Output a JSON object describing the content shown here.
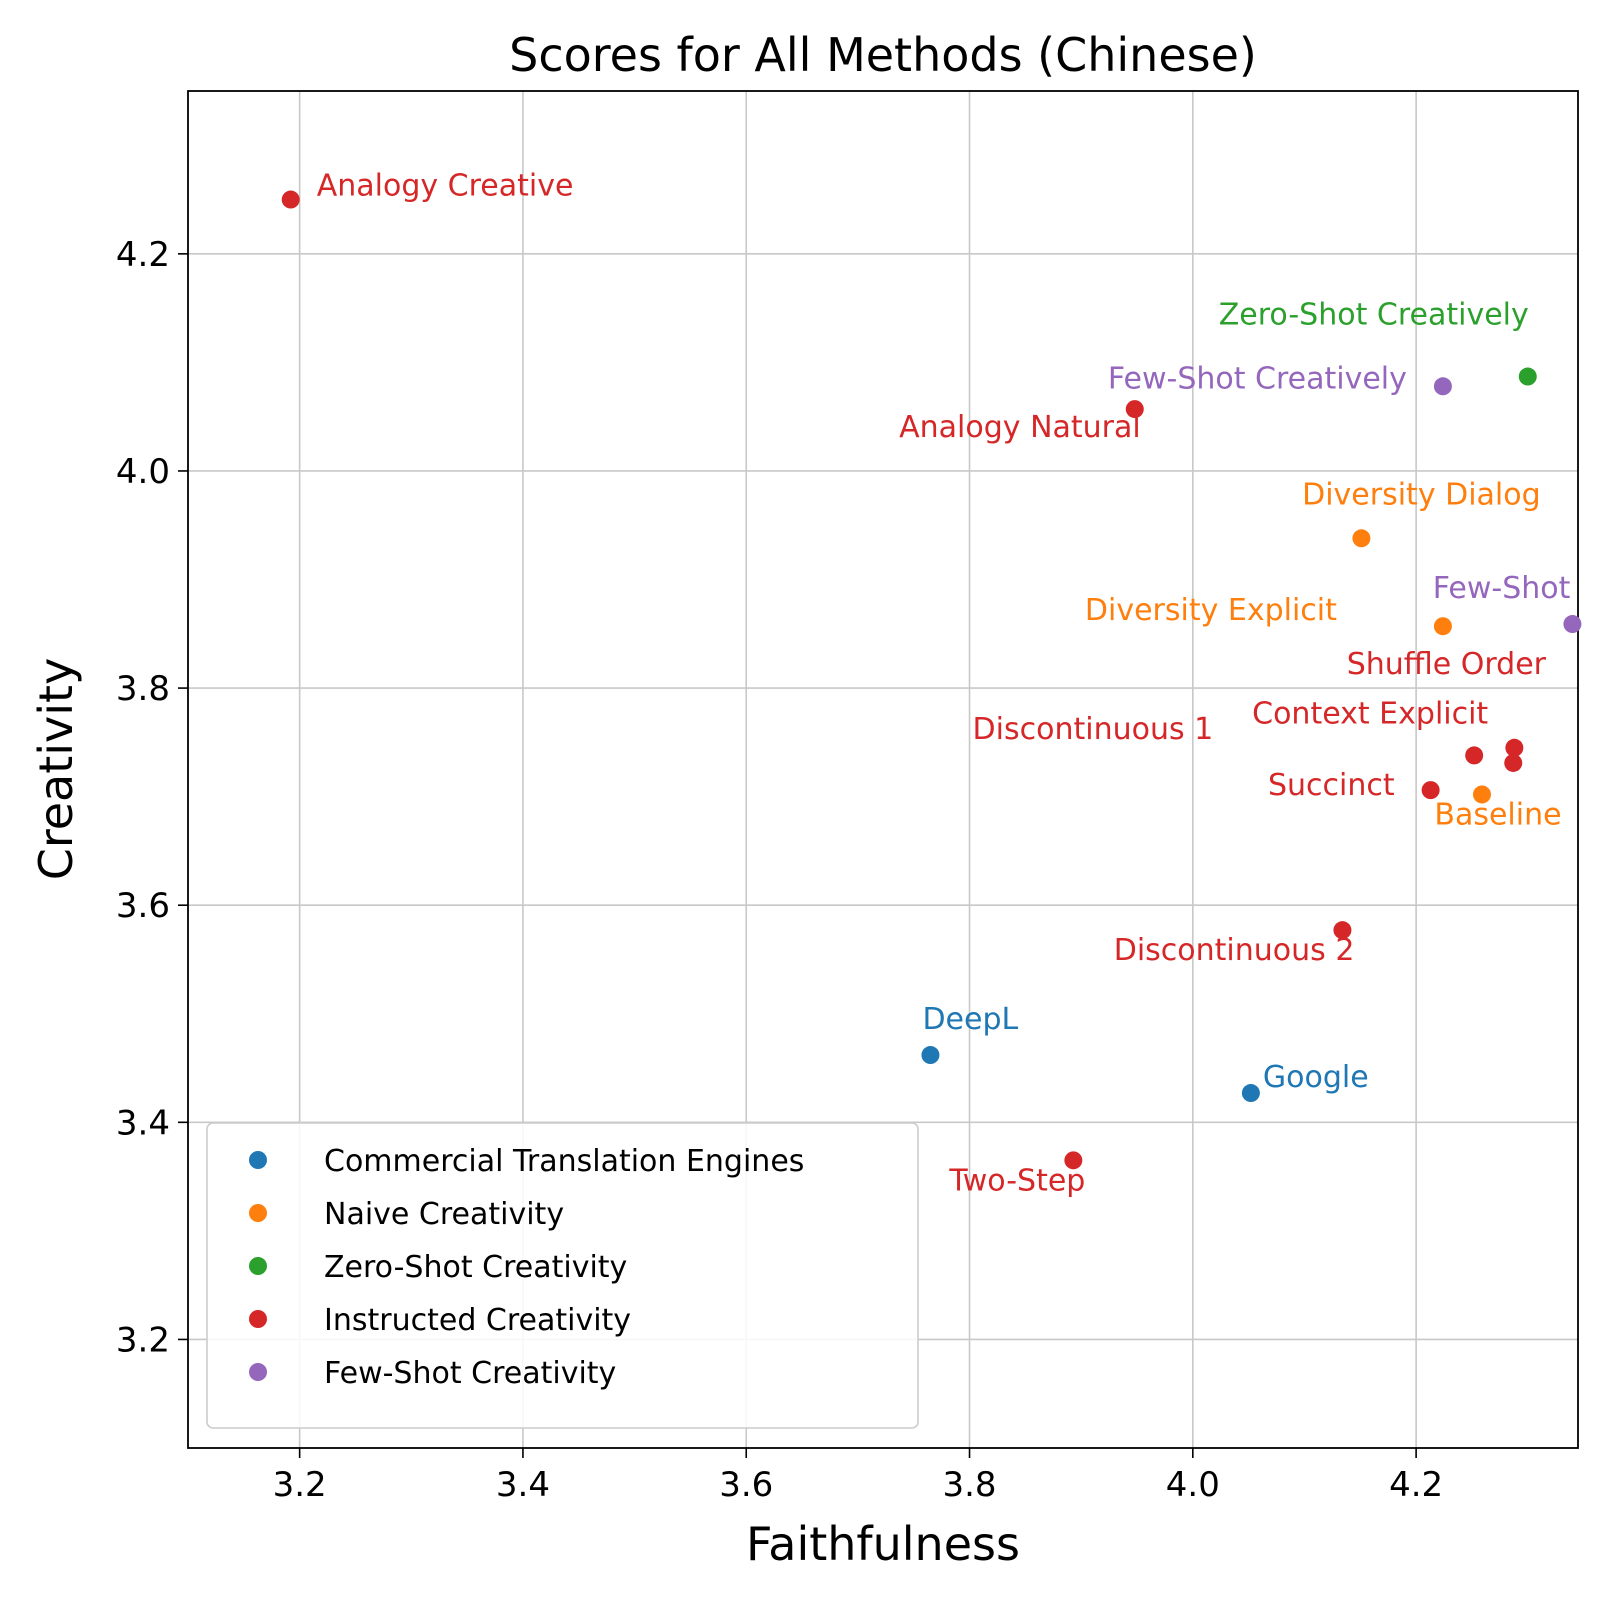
{
  "chart_data": {
    "type": "scatter",
    "title": "Scores for All Methods (Chinese)",
    "xlabel": "Faithfulness",
    "ylabel": "Creativity",
    "xlim": [
      3.1,
      4.345
    ],
    "ylim": [
      3.1,
      4.35
    ],
    "xticks": [
      "3.2",
      "3.4",
      "3.6",
      "3.8",
      "4.0",
      "4.2"
    ],
    "yticks": [
      "3.2",
      "3.4",
      "3.6",
      "3.8",
      "4.0",
      "4.2"
    ],
    "grid": true,
    "legend_position": "lower-left",
    "series": [
      {
        "name": "Commercial Translation Engines",
        "color": "#1f77b4",
        "points": [
          {
            "label": "DeepL",
            "x": 3.765,
            "y": 3.462
          },
          {
            "label": "Google",
            "x": 4.052,
            "y": 3.427
          }
        ]
      },
      {
        "name": "Naive Creativity",
        "color": "#ff7f0e",
        "points": [
          {
            "label": "Diversity Dialog",
            "x": 4.151,
            "y": 3.938
          },
          {
            "label": "Diversity Explicit",
            "x": 4.224,
            "y": 3.857
          },
          {
            "label": "Baseline",
            "x": 4.259,
            "y": 3.702
          }
        ]
      },
      {
        "name": "Zero-Shot Creativity",
        "color": "#2ca02c",
        "points": [
          {
            "label": "Zero-Shot Creatively",
            "x": 4.3,
            "y": 4.087
          }
        ]
      },
      {
        "name": "Instructed Creativity",
        "color": "#d62728",
        "points": [
          {
            "label": "Analogy Creative",
            "x": 3.192,
            "y": 4.25
          },
          {
            "label": "Analogy Natural",
            "x": 3.948,
            "y": 4.057
          },
          {
            "label": "Shuffle Order",
            "x": 4.288,
            "y": 3.745
          },
          {
            "label": "Context Explicit",
            "x": 4.252,
            "y": 3.738
          },
          {
            "label": "Discontinuous 1",
            "x": 4.287,
            "y": 3.731
          },
          {
            "label": "Succinct",
            "x": 4.213,
            "y": 3.706
          },
          {
            "label": "Discontinuous 2",
            "x": 4.134,
            "y": 3.577
          },
          {
            "label": "Two-Step",
            "x": 3.893,
            "y": 3.365
          }
        ]
      },
      {
        "name": "Few-Shot Creativity",
        "color": "#9467bd",
        "points": [
          {
            "label": "Few-Shot Creatively",
            "x": 4.224,
            "y": 4.078
          },
          {
            "label": "Few-Shot",
            "x": 4.34,
            "y": 3.859
          }
        ]
      }
    ]
  }
}
